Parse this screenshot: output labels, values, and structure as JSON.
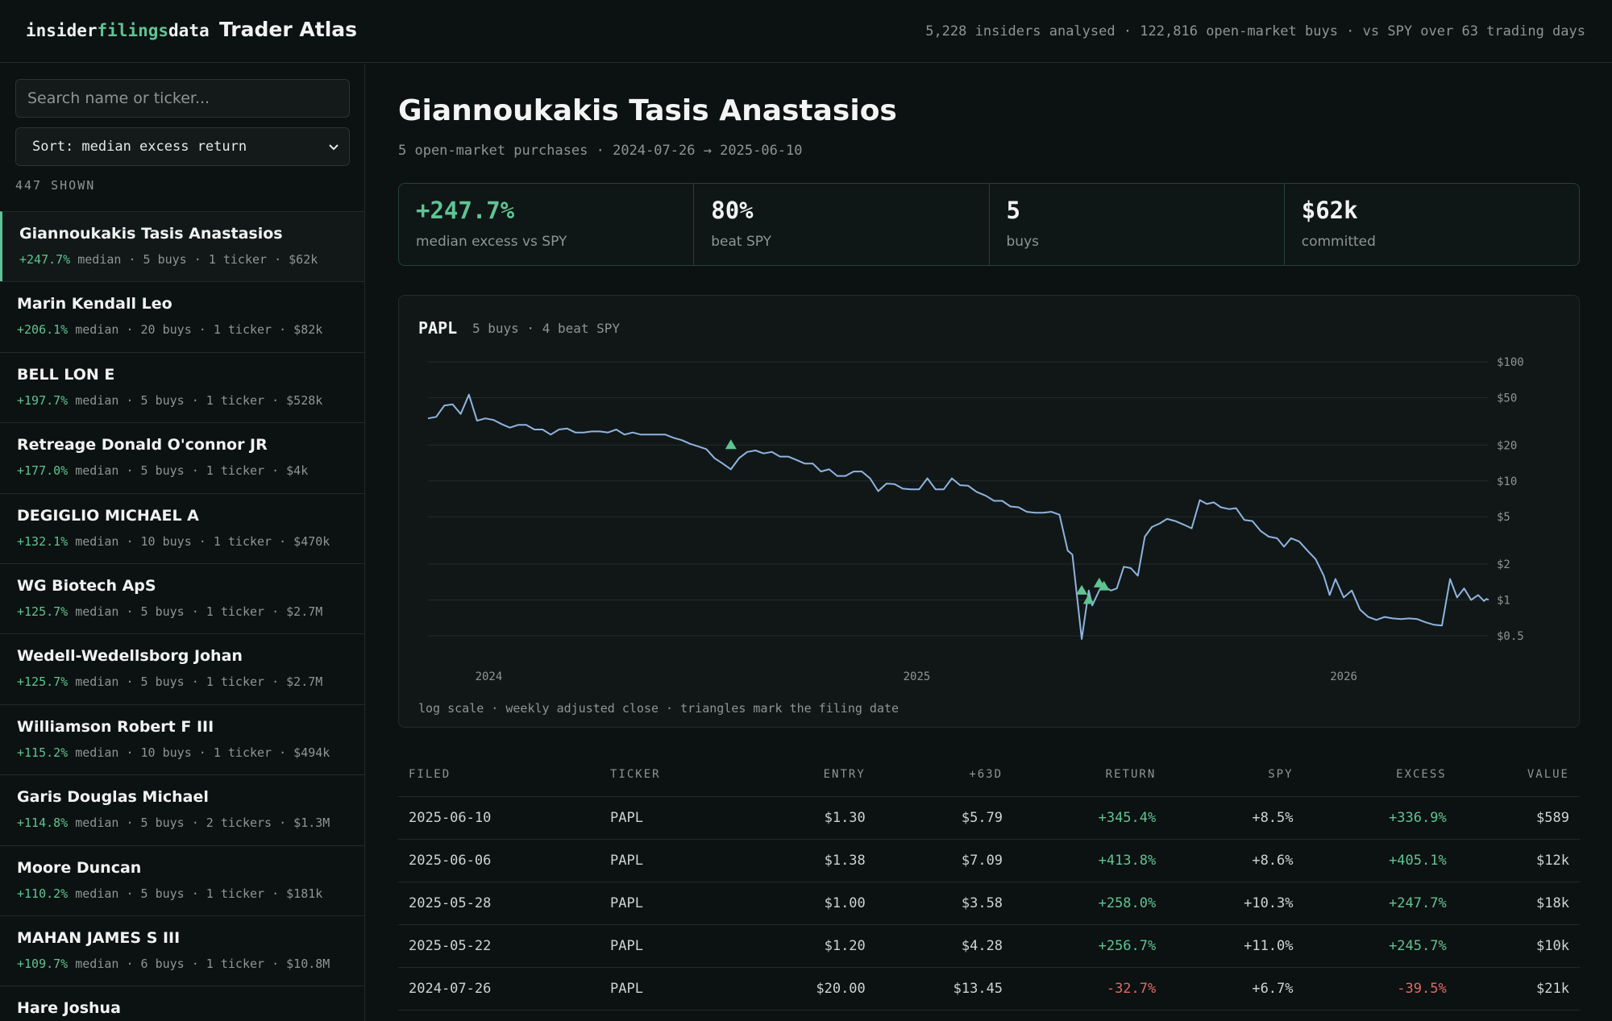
{
  "header": {
    "brand": {
      "part1": "insider",
      "part2": "filings",
      "part3": "data"
    },
    "app_title": "Trader Atlas",
    "stats": "5,228 insiders analysed · 122,816 open-market buys · vs SPY over 63 trading days"
  },
  "sidebar": {
    "search_placeholder": "Search name or ticker...",
    "sort_label": "Sort: median excess return",
    "shown_count": "447 SHOWN",
    "items": [
      {
        "name": "Giannoukakis Tasis Anastasios",
        "median": "+247.7%",
        "meta": " median · 5 buys · 1 ticker · $62k",
        "active": true
      },
      {
        "name": "Marin Kendall Leo",
        "median": "+206.1%",
        "meta": " median · 20 buys · 1 ticker · $82k"
      },
      {
        "name": "BELL LON E",
        "median": "+197.7%",
        "meta": " median · 5 buys · 1 ticker · $528k"
      },
      {
        "name": "Retreage Donald O'connor JR",
        "median": "+177.0%",
        "meta": " median · 5 buys · 1 ticker · $4k"
      },
      {
        "name": "DEGIGLIO MICHAEL A",
        "median": "+132.1%",
        "meta": " median · 10 buys · 1 ticker · $470k"
      },
      {
        "name": "WG Biotech ApS",
        "median": "+125.7%",
        "meta": " median · 5 buys · 1 ticker · $2.7M"
      },
      {
        "name": "Wedell-Wedellsborg Johan",
        "median": "+125.7%",
        "meta": " median · 5 buys · 1 ticker · $2.7M"
      },
      {
        "name": "Williamson Robert F III",
        "median": "+115.2%",
        "meta": " median · 10 buys · 1 ticker · $494k"
      },
      {
        "name": "Garis Douglas Michael",
        "median": "+114.8%",
        "meta": " median · 5 buys · 2 tickers · $1.3M"
      },
      {
        "name": "Moore Duncan",
        "median": "+110.2%",
        "meta": " median · 5 buys · 1 ticker · $181k"
      },
      {
        "name": "MAHAN JAMES S III",
        "median": "+109.7%",
        "meta": " median · 6 buys · 1 ticker · $10.8M"
      },
      {
        "name": "Hare Joshua",
        "median": "",
        "meta": ""
      }
    ]
  },
  "main": {
    "title": "Giannoukakis Tasis Anastasios",
    "subtitle": "5 open-market purchases · 2024-07-26 → 2025-06-10",
    "stats": [
      {
        "value": "+247.7%",
        "label": "median excess vs SPY",
        "positive": true
      },
      {
        "value": "80%",
        "label": "beat SPY"
      },
      {
        "value": "5",
        "label": "buys"
      },
      {
        "value": "$62k",
        "label": "committed"
      }
    ],
    "chart": {
      "ticker": "PAPL",
      "subtitle": "5 buys · 4 beat SPY",
      "note": "log scale · weekly adjusted close · triangles mark the filing date"
    },
    "table": {
      "headers": [
        "FILED",
        "TICKER",
        "ENTRY",
        "+63D",
        "RETURN",
        "SPY",
        "EXCESS",
        "VALUE"
      ],
      "rows": [
        [
          "2025-06-10",
          "PAPL",
          "$1.30",
          "$5.79",
          "+345.4%",
          "+8.5%",
          "+336.9%",
          "$589"
        ],
        [
          "2025-06-06",
          "PAPL",
          "$1.38",
          "$7.09",
          "+413.8%",
          "+8.6%",
          "+405.1%",
          "$12k"
        ],
        [
          "2025-05-28",
          "PAPL",
          "$1.00",
          "$3.58",
          "+258.0%",
          "+10.3%",
          "+247.7%",
          "$18k"
        ],
        [
          "2025-05-22",
          "PAPL",
          "$1.20",
          "$4.28",
          "+256.7%",
          "+11.0%",
          "+245.7%",
          "$10k"
        ],
        [
          "2024-07-26",
          "PAPL",
          "$20.00",
          "$13.45",
          "-32.7%",
          "+6.7%",
          "-39.5%",
          "$21k"
        ]
      ]
    }
  },
  "colors": {
    "accent": "#5fc493",
    "negative": "#e06a64",
    "line": "#8fb4e0",
    "background": "#0c1111"
  },
  "chart_data": {
    "type": "line",
    "title": "PAPL",
    "scale": "log",
    "y_ticks": [
      "$0.5",
      "$1",
      "$2",
      "$5",
      "$10",
      "$20",
      "$50",
      "$100"
    ],
    "y_tick_values": [
      0.5,
      1,
      2,
      5,
      10,
      20,
      50,
      100
    ],
    "x_ticks": [
      "2024",
      "2025",
      "2026"
    ],
    "x_tick_dates": [
      "2024-01-01",
      "2025-01-01",
      "2026-01-01"
    ],
    "xlim": [
      "2023-11-10",
      "2026-05-05"
    ],
    "ylim": [
      0.5,
      100
    ],
    "grid": true,
    "series": [
      {
        "name": "PAPL",
        "points": [
          [
            "2023-11-10",
            33.5
          ],
          [
            "2023-11-17",
            34.5
          ],
          [
            "2023-11-24",
            43
          ],
          [
            "2023-12-01",
            44
          ],
          [
            "2023-12-08",
            36.5
          ],
          [
            "2023-12-15",
            53
          ],
          [
            "2023-12-22",
            32
          ],
          [
            "2023-12-29",
            33.5
          ],
          [
            "2024-01-05",
            32.5
          ],
          [
            "2024-01-12",
            30
          ],
          [
            "2024-01-19",
            28
          ],
          [
            "2024-01-26",
            29.5
          ],
          [
            "2024-02-02",
            29.5
          ],
          [
            "2024-02-09",
            27
          ],
          [
            "2024-02-16",
            27
          ],
          [
            "2024-02-23",
            24.5
          ],
          [
            "2024-03-01",
            27
          ],
          [
            "2024-03-08",
            27.5
          ],
          [
            "2024-03-15",
            25.5
          ],
          [
            "2024-03-22",
            25.5
          ],
          [
            "2024-03-29",
            26
          ],
          [
            "2024-04-05",
            26
          ],
          [
            "2024-04-12",
            25.5
          ],
          [
            "2024-04-19",
            27
          ],
          [
            "2024-04-26",
            24.5
          ],
          [
            "2024-05-03",
            25.5
          ],
          [
            "2024-05-10",
            24.5
          ],
          [
            "2024-05-17",
            24.5
          ],
          [
            "2024-05-24",
            24.5
          ],
          [
            "2024-05-31",
            24.5
          ],
          [
            "2024-06-07",
            23
          ],
          [
            "2024-06-14",
            22
          ],
          [
            "2024-06-21",
            20.5
          ],
          [
            "2024-06-28",
            19.5
          ],
          [
            "2024-07-05",
            18.5
          ],
          [
            "2024-07-12",
            15.5
          ],
          [
            "2024-07-19",
            14
          ],
          [
            "2024-07-26",
            12.5
          ],
          [
            "2024-08-02",
            15.5
          ],
          [
            "2024-08-09",
            17.5
          ],
          [
            "2024-08-16",
            18
          ],
          [
            "2024-08-23",
            17
          ],
          [
            "2024-08-30",
            17.5
          ],
          [
            "2024-09-06",
            16
          ],
          [
            "2024-09-13",
            16
          ],
          [
            "2024-09-20",
            15
          ],
          [
            "2024-09-27",
            14
          ],
          [
            "2024-10-04",
            14
          ],
          [
            "2024-10-11",
            12
          ],
          [
            "2024-10-18",
            12.5
          ],
          [
            "2024-10-25",
            11
          ],
          [
            "2024-11-01",
            11
          ],
          [
            "2024-11-08",
            12
          ],
          [
            "2024-11-15",
            12
          ],
          [
            "2024-11-22",
            10.5
          ],
          [
            "2024-11-29",
            8.2
          ],
          [
            "2024-12-06",
            9.5
          ],
          [
            "2024-12-13",
            9.4
          ],
          [
            "2024-12-20",
            8.6
          ],
          [
            "2024-12-27",
            8.5
          ],
          [
            "2025-01-03",
            8.5
          ],
          [
            "2025-01-10",
            10.5
          ],
          [
            "2025-01-17",
            8.5
          ],
          [
            "2025-01-24",
            8.5
          ],
          [
            "2025-01-31",
            10.5
          ],
          [
            "2025-02-07",
            9.2
          ],
          [
            "2025-02-14",
            9.1
          ],
          [
            "2025-02-21",
            8.1
          ],
          [
            "2025-03-01",
            7.5
          ],
          [
            "2025-03-08",
            6.8
          ],
          [
            "2025-03-15",
            6.8
          ],
          [
            "2025-03-22",
            6.1
          ],
          [
            "2025-03-29",
            6
          ],
          [
            "2025-04-05",
            5.5
          ],
          [
            "2025-04-12",
            5.4
          ],
          [
            "2025-04-19",
            5.4
          ],
          [
            "2025-04-26",
            5.5
          ],
          [
            "2025-05-03",
            5.2
          ],
          [
            "2025-05-10",
            2.6
          ],
          [
            "2025-05-14",
            2.4
          ],
          [
            "2025-05-22",
            0.47
          ],
          [
            "2025-05-28",
            1.2
          ],
          [
            "2025-05-31",
            0.9
          ],
          [
            "2025-06-06",
            1.2
          ],
          [
            "2025-06-10",
            1.3
          ],
          [
            "2025-06-16",
            1.2
          ],
          [
            "2025-06-21",
            1.25
          ],
          [
            "2025-06-27",
            1.9
          ],
          [
            "2025-07-03",
            1.85
          ],
          [
            "2025-07-09",
            1.6
          ],
          [
            "2025-07-15",
            3.4
          ],
          [
            "2025-07-21",
            4.1
          ],
          [
            "2025-07-28",
            4.4
          ],
          [
            "2025-08-03",
            4.8
          ],
          [
            "2025-08-10",
            4.6
          ],
          [
            "2025-08-17",
            4.3
          ],
          [
            "2025-08-24",
            4
          ],
          [
            "2025-08-31",
            6.9
          ],
          [
            "2025-09-06",
            6.4
          ],
          [
            "2025-09-12",
            6.6
          ],
          [
            "2025-09-18",
            6
          ],
          [
            "2025-09-25",
            5.8
          ],
          [
            "2025-10-01",
            5.9
          ],
          [
            "2025-10-08",
            4.7
          ],
          [
            "2025-10-15",
            4.6
          ],
          [
            "2025-10-22",
            3.8
          ],
          [
            "2025-10-29",
            3.4
          ],
          [
            "2025-11-05",
            3.3
          ],
          [
            "2025-11-11",
            2.8
          ],
          [
            "2025-11-17",
            3.3
          ],
          [
            "2025-11-24",
            3.1
          ],
          [
            "2025-12-01",
            2.6
          ],
          [
            "2025-12-08",
            2.2
          ],
          [
            "2025-12-15",
            1.6
          ],
          [
            "2025-12-20",
            1.1
          ],
          [
            "2025-12-25",
            1.5
          ],
          [
            "2026-01-01",
            1.05
          ],
          [
            "2026-01-08",
            1.2
          ],
          [
            "2026-01-15",
            0.83
          ],
          [
            "2026-01-22",
            0.72
          ],
          [
            "2026-01-29",
            0.68
          ],
          [
            "2026-02-05",
            0.72
          ],
          [
            "2026-02-12",
            0.7
          ],
          [
            "2026-02-19",
            0.69
          ],
          [
            "2026-02-26",
            0.7
          ],
          [
            "2026-03-05",
            0.69
          ],
          [
            "2026-03-12",
            0.65
          ],
          [
            "2026-03-19",
            0.62
          ],
          [
            "2026-03-26",
            0.61
          ],
          [
            "2026-04-02",
            1.5
          ],
          [
            "2026-04-08",
            1.05
          ],
          [
            "2026-04-14",
            1.25
          ],
          [
            "2026-04-20",
            1.0
          ],
          [
            "2026-04-26",
            1.1
          ],
          [
            "2026-05-01",
            0.98
          ],
          [
            "2026-05-03",
            1.02
          ],
          [
            "2026-05-05",
            1.0
          ]
        ]
      }
    ],
    "buys": [
      {
        "date": "2024-07-26",
        "price": 20.0
      },
      {
        "date": "2025-05-22",
        "price": 1.2
      },
      {
        "date": "2025-05-28",
        "price": 1.0
      },
      {
        "date": "2025-06-06",
        "price": 1.38
      },
      {
        "date": "2025-06-10",
        "price": 1.3
      }
    ]
  }
}
